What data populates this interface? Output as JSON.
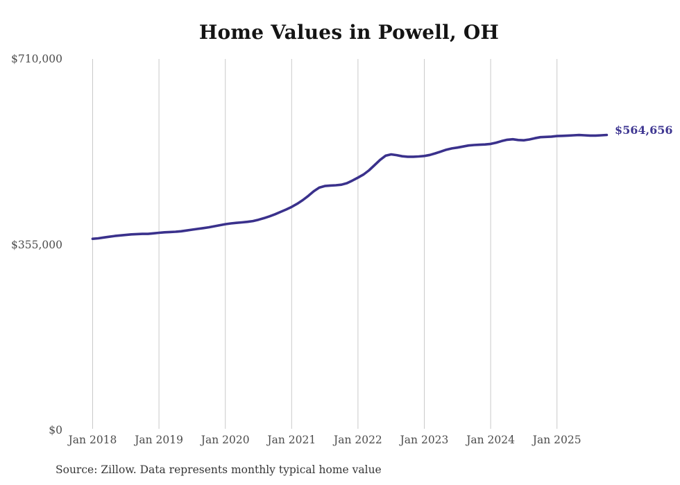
{
  "title": "Home Values in Powell, OH",
  "end_label": "$564,656",
  "source": "Source: Zillow. Data represents monthly typical home value",
  "colors": {
    "line": "#3a318c",
    "end_label": "#3f3792",
    "grid": "#c9c9c9",
    "axis_text": "#4c4c4c",
    "title_text": "#141414",
    "source_text": "#363636",
    "background": "#ffffff"
  },
  "y_axis": {
    "ticks": [
      {
        "label": "$710,000",
        "value": 710000
      },
      {
        "label": "$355,000",
        "value": 355000
      },
      {
        "label": "$0",
        "value": 0
      }
    ]
  },
  "x_axis": {
    "ticks": [
      "Jan 2018",
      "Jan 2019",
      "Jan 2020",
      "Jan 2021",
      "Jan 2022",
      "Jan 2023",
      "Jan 2024",
      "Jan 2025"
    ]
  },
  "chart_data": {
    "type": "line",
    "title": "Home Values in Powell, OH",
    "xlabel": "",
    "ylabel": "",
    "x_start": "2018-01",
    "x_end": "2025-10",
    "x_frequency": "monthly",
    "x_tick_labels": [
      "Jan 2018",
      "Jan 2019",
      "Jan 2020",
      "Jan 2021",
      "Jan 2022",
      "Jan 2023",
      "Jan 2024",
      "Jan 2025"
    ],
    "ylim": [
      0,
      710000
    ],
    "y_tick_values": [
      0,
      355000,
      710000
    ],
    "grid": "vertical-only",
    "legend": "none",
    "last_value": 564656,
    "last_value_label": "$564,656",
    "series": [
      {
        "name": "Typical home value",
        "values": [
          366000,
          367000,
          368500,
          370000,
          371500,
          372500,
          373500,
          374500,
          375000,
          375500,
          375500,
          376500,
          377500,
          378500,
          379000,
          379500,
          380500,
          382000,
          383500,
          385000,
          386500,
          388000,
          390000,
          392000,
          394000,
          395500,
          396500,
          397500,
          398500,
          400000,
          402500,
          405500,
          409000,
          413000,
          417500,
          422000,
          427000,
          433000,
          440000,
          448000,
          457000,
          464000,
          467000,
          468000,
          468500,
          469500,
          472500,
          477500,
          483000,
          489000,
          497000,
          507000,
          517000,
          525000,
          527500,
          526000,
          524000,
          523000,
          523000,
          523500,
          524500,
          526500,
          529500,
          533000,
          536500,
          539000,
          540500,
          542500,
          544500,
          545500,
          546000,
          546500,
          547500,
          550000,
          553000,
          555500,
          556500,
          555000,
          554500,
          556000,
          558500,
          560500,
          561000,
          561500,
          562500,
          563000,
          563500,
          564000,
          564500,
          564000,
          563500,
          563500,
          564000,
          564656
        ]
      }
    ]
  }
}
